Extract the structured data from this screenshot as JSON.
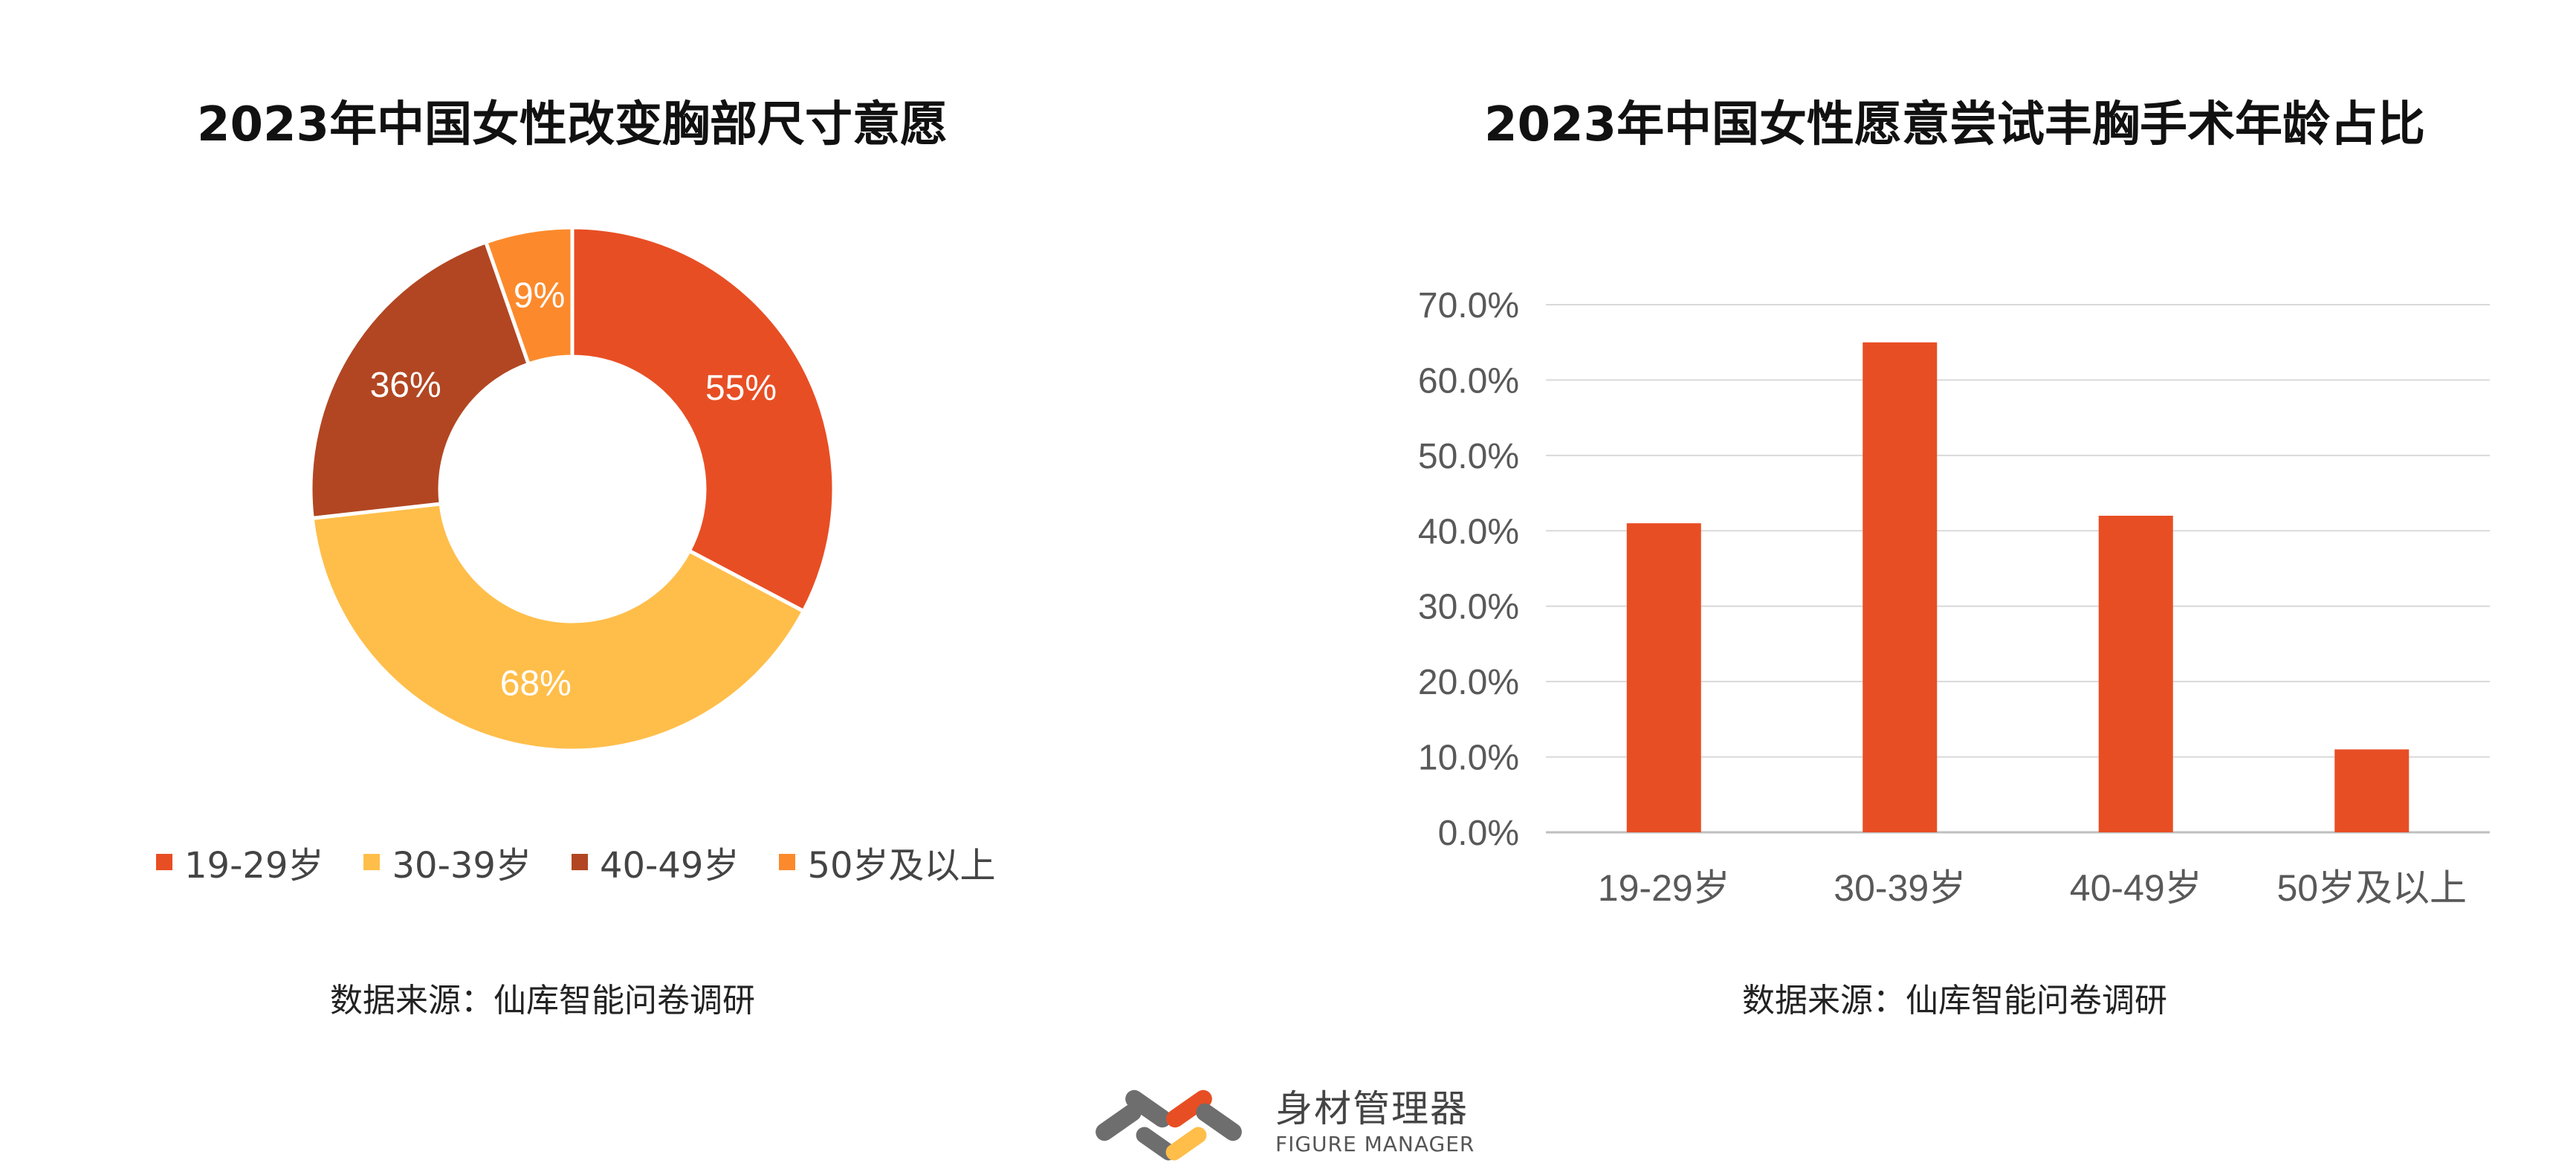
{
  "chart_data": [
    {
      "type": "pie",
      "title": "2023年中国女性改变胸部尺寸意愿",
      "categories": [
        "19-29岁",
        "30-39岁",
        "40-49岁",
        "50岁及以上"
      ],
      "values": [
        55,
        68,
        36,
        9
      ],
      "value_labels": [
        "55%",
        "68%",
        "36%",
        "9%"
      ],
      "colors": [
        "#E84E24",
        "#FFBE4A",
        "#B24622",
        "#FC8A2C"
      ],
      "legend": "bottom",
      "source": "数据来源：仙库智能问卷调研"
    },
    {
      "type": "bar",
      "title": "2023年中国女性愿意尝试丰胸手术年龄占比",
      "categories": [
        "19-29岁",
        "30-39岁",
        "40-49岁",
        "50岁及以上"
      ],
      "values": [
        41,
        65,
        42,
        11
      ],
      "ylim": [
        0,
        70
      ],
      "yticks": [
        0,
        10,
        20,
        30,
        40,
        50,
        60,
        70
      ],
      "ytick_labels": [
        "0.0%",
        "10.0%",
        "20.0%",
        "30.0%",
        "40.0%",
        "50.0%",
        "60.0%",
        "70.0%"
      ],
      "color": "#E84E24",
      "grid": true,
      "source": "数据来源：仙库智能问卷调研"
    }
  ],
  "brand": {
    "name_cn": "身材管理器",
    "name_en": "FIGURE MANAGER",
    "logo_colors": [
      "#6E6E6E",
      "#E84E24",
      "#FFBE4A"
    ]
  }
}
